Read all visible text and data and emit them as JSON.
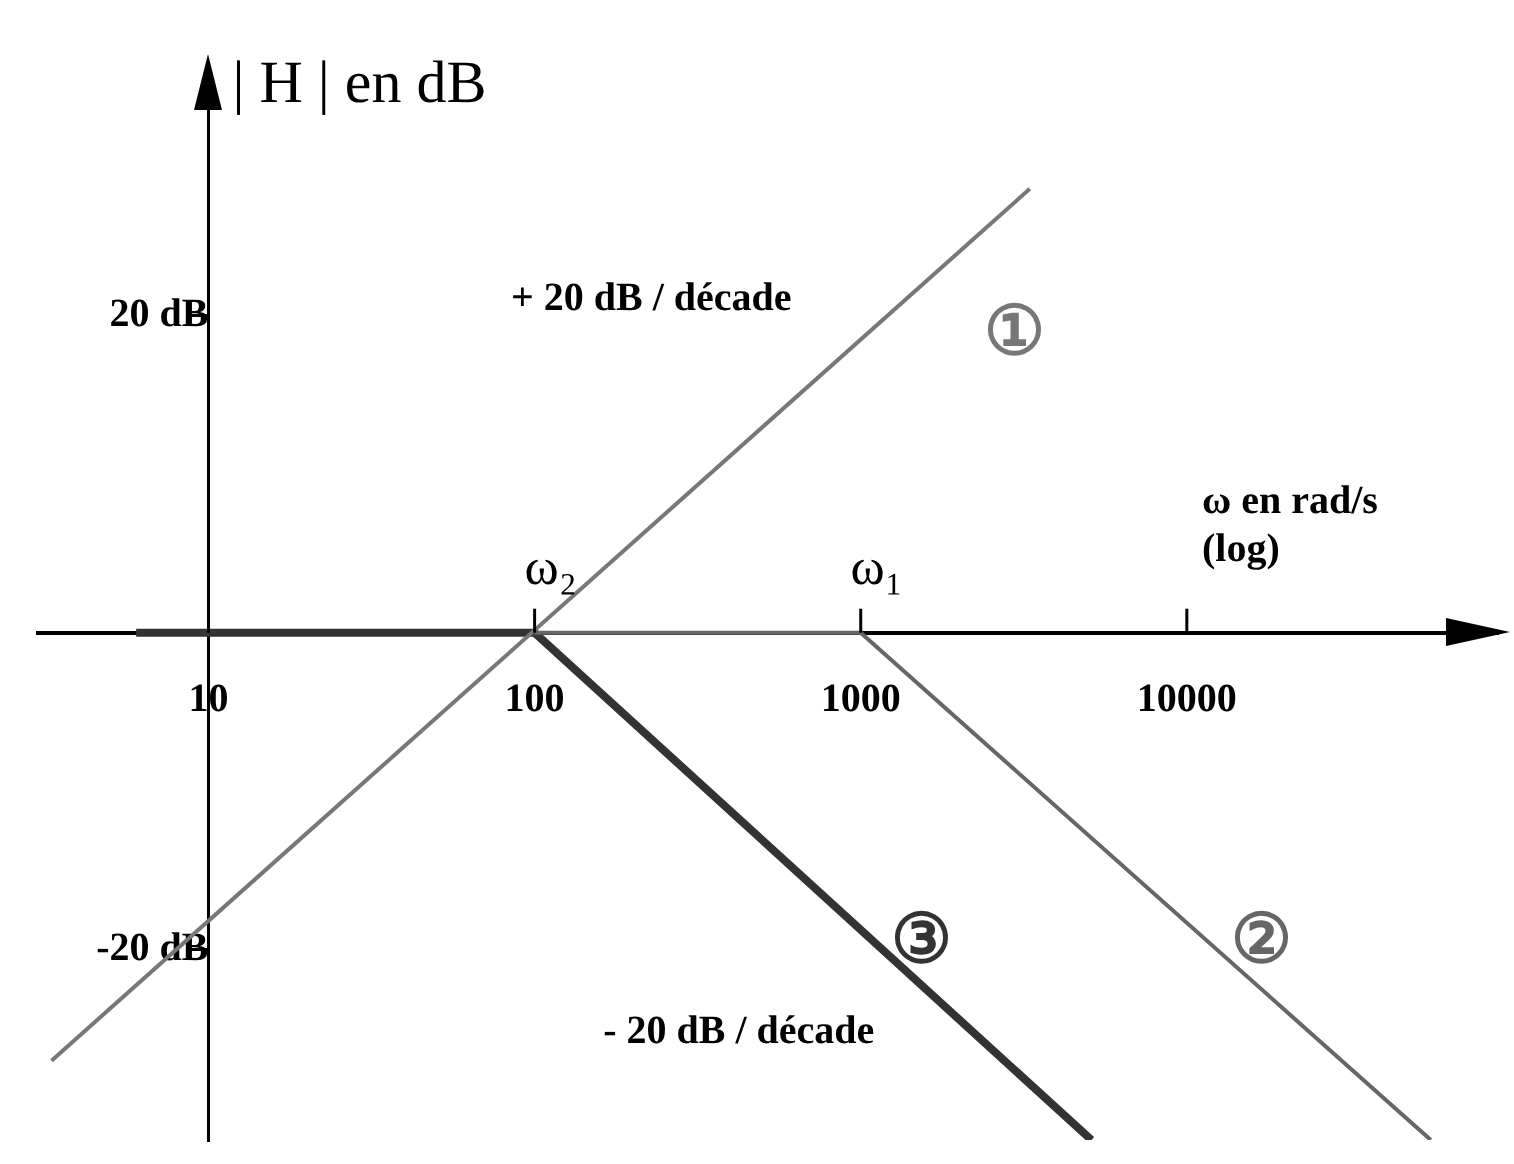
{
  "chart_data": {
    "type": "line",
    "ylabel": "| H | en dB",
    "xlabel": "ω en rad/s\n(log)",
    "log": "x",
    "marker": "none",
    "line_style": "solid",
    "xlim": [
      3,
      90000
    ],
    "xticks": [
      10,
      100,
      1000,
      10000
    ],
    "ylim": [
      -32,
      36
    ],
    "yticks": [
      {
        "value": 20,
        "label": "20 dB"
      },
      {
        "value": -20,
        "label": "-20 dB"
      }
    ],
    "series": [
      {
        "name": "①",
        "color": "#777777",
        "x": [
          3.3,
          3300
        ],
        "values": [
          -27,
          28
        ]
      },
      {
        "name": "②",
        "color": "#666666",
        "x": [
          100,
          1000,
          56000
        ],
        "values": [
          0,
          0,
          -32
        ]
      },
      {
        "name": "③",
        "color": "#333333",
        "x": [
          6,
          100,
          5100
        ],
        "values": [
          0,
          0,
          -32
        ]
      }
    ],
    "annotations": [
      {
        "text": "ω₂",
        "x": 100,
        "y": 0
      },
      {
        "text": "ω₁",
        "x": 1000,
        "y": 0
      },
      "+ 20 dB / décade",
      "- 20 dB / décade"
    ]
  }
}
